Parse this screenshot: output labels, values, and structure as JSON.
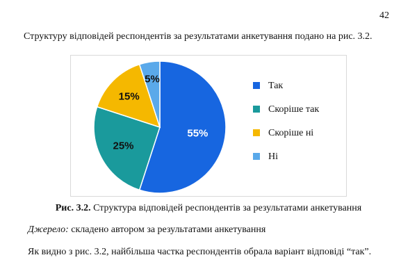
{
  "page": {
    "number": "42"
  },
  "text": {
    "intro": "Структуру відповідей респондентів за результатами анкетування подано на рис. 3.2.",
    "caption_prefix": "Рис. 3.2.",
    "caption_text": " Структура відповідей респондентів за результатами анкетування",
    "source_prefix": "Джерело:",
    "source_text": " складено автором за результатами анкетування",
    "conclusion": "Як видно з рис. 3.2, найбільша частка респондентів обрала варіант відповіді “так”."
  },
  "chart_data": {
    "type": "pie",
    "categories": [
      "Так",
      "Скоріше так",
      "Скоріше ні",
      "Ні"
    ],
    "values": [
      55,
      25,
      15,
      5
    ],
    "labels": [
      "55%",
      "25%",
      "15%",
      "5%"
    ],
    "colors": [
      "#1766e0",
      "#1a9a9c",
      "#f5b800",
      "#5aa9ea"
    ],
    "label_colors": [
      "#ffffff",
      "#111111",
      "#111111",
      "#111111"
    ],
    "legend_position": "right",
    "start": "top",
    "direction": "clockwise"
  }
}
